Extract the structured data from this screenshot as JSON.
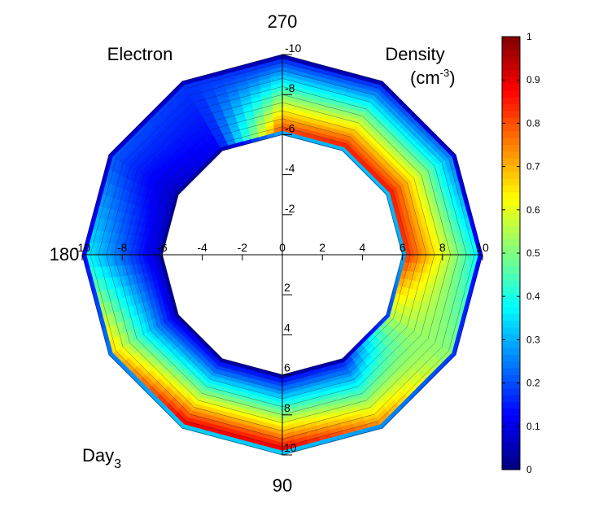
{
  "chart_data": {
    "type": "heatmap",
    "projection": "polar",
    "title_left": "Electron",
    "title_right": "Density",
    "unit_base": "(cm",
    "unit_sup": "-3",
    "unit_close": ")",
    "day_label": "Day",
    "day_sub": "3",
    "angle_labels": {
      "a270": "270",
      "a180": "180",
      "a90": "90"
    },
    "radius_range": [
      6,
      10
    ],
    "sides": 12,
    "axis_ticks_x": [
      "-10",
      "-8",
      "-6",
      "-4",
      "-2",
      "0",
      "2",
      "4",
      "6",
      "8",
      "10"
    ],
    "axis_ticks_y_up": [
      "-10",
      "-8",
      "-6",
      "-4",
      "-2",
      "0"
    ],
    "axis_ticks_y_down": [
      "2",
      "4",
      "6",
      "8",
      "10"
    ],
    "angles_deg": [
      0,
      30,
      60,
      90,
      120,
      150,
      180,
      210,
      240,
      270,
      300,
      330
    ],
    "density_inner": [
      0.86,
      0.55,
      0.12,
      0.08,
      0.08,
      0.06,
      0.06,
      0.06,
      0.12,
      0.86,
      0.9,
      0.9
    ],
    "density_outer": [
      0.35,
      0.5,
      0.78,
      0.95,
      0.95,
      0.72,
      0.38,
      0.22,
      0.18,
      0.12,
      0.12,
      0.2
    ],
    "colorbar": {
      "min": 0,
      "max": 1,
      "ticks": [
        "1",
        "0.9",
        "0.8",
        "0.7",
        "0.6",
        "0.5",
        "0.4",
        "0.3",
        "0.2",
        "0.1",
        "0"
      ],
      "colormap": "jet"
    }
  }
}
